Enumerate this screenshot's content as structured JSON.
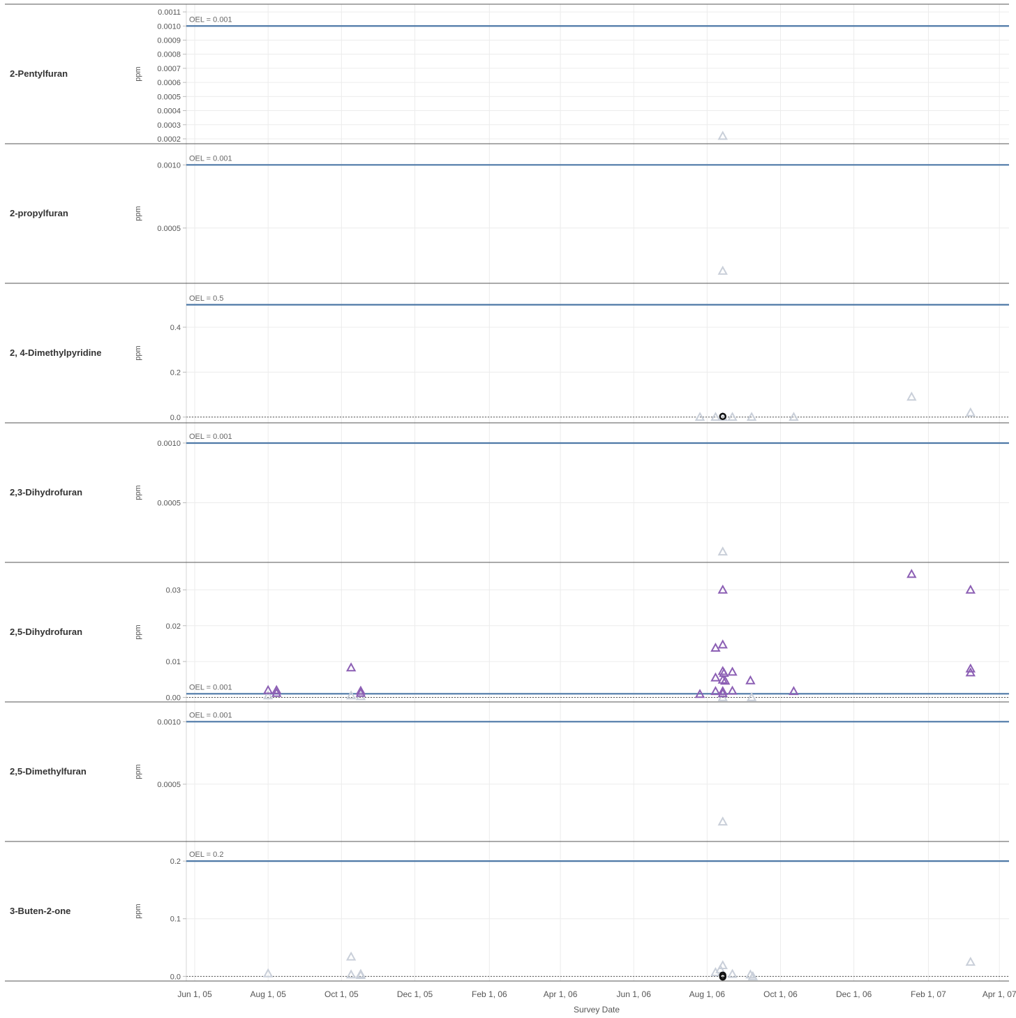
{
  "chart_data": {
    "type": "scatter",
    "x_axis": {
      "title": "Survey Date",
      "range": [
        "2005-05-25",
        "2007-04-09"
      ],
      "ticks": [
        {
          "date": "2005-06-01",
          "label": "Jun 1, 05"
        },
        {
          "date": "2005-08-01",
          "label": "Aug 1, 05"
        },
        {
          "date": "2005-10-01",
          "label": "Oct 1, 05"
        },
        {
          "date": "2005-12-01",
          "label": "Dec 1, 05"
        },
        {
          "date": "2006-02-01",
          "label": "Feb 1, 06"
        },
        {
          "date": "2006-04-01",
          "label": "Apr 1, 06"
        },
        {
          "date": "2006-06-01",
          "label": "Jun 1, 06"
        },
        {
          "date": "2006-08-01",
          "label": "Aug 1, 06"
        },
        {
          "date": "2006-10-01",
          "label": "Oct 1, 06"
        },
        {
          "date": "2006-12-01",
          "label": "Dec 1, 06"
        },
        {
          "date": "2007-02-01",
          "label": "Feb 1, 07"
        },
        {
          "date": "2007-04-01",
          "label": "Apr 1, 07"
        }
      ]
    },
    "colors": {
      "oel_line": "#4e79a7",
      "below_oel": "#c9cfd9",
      "above_oel": "#8c5fb4",
      "special": "#111111",
      "grid": "#ececec",
      "zero_line": "#555555"
    },
    "panels": [
      {
        "name": "2-Pentylfuran",
        "ylabel": "ppm",
        "oel": 0.001,
        "oel_label": "OEL = 0.001",
        "ylim": [
          0.00019,
          0.00113
        ],
        "zero_line": false,
        "ticks": [
          {
            "v": 0.0011,
            "label": "0.0011"
          },
          {
            "v": 0.001,
            "label": "0.0010"
          },
          {
            "v": 0.0009,
            "label": "0.0009"
          },
          {
            "v": 0.0008,
            "label": "0.0008"
          },
          {
            "v": 0.0007,
            "label": "0.0007"
          },
          {
            "v": 0.0006,
            "label": "0.0006"
          },
          {
            "v": 0.0005,
            "label": "0.0005"
          },
          {
            "v": 0.0004,
            "label": "0.0004"
          },
          {
            "v": 0.0003,
            "label": "0.0003"
          },
          {
            "v": 0.0002,
            "label": "0.0002"
          }
        ],
        "points": [
          {
            "x": "2006-08-14",
            "y": 0.00022,
            "kind": "below"
          }
        ]
      },
      {
        "name": "2-propylfuran",
        "ylabel": "ppm",
        "oel": 0.001,
        "oel_label": "OEL = 0.001",
        "ylim": [
          9e-05,
          0.00114
        ],
        "zero_line": false,
        "ticks": [
          {
            "v": 0.001,
            "label": "0.0010"
          },
          {
            "v": 0.0005,
            "label": "0.0005"
          }
        ],
        "points": [
          {
            "x": "2006-08-14",
            "y": 0.00016,
            "kind": "below"
          }
        ]
      },
      {
        "name": "2, 4-Dimethylpyridine",
        "ylabel": "ppm",
        "oel": 0.5,
        "oel_label": "OEL = 0.5",
        "ylim": [
          -0.01,
          0.58
        ],
        "zero_line": true,
        "ticks": [
          {
            "v": 0.4,
            "label": "0.4"
          },
          {
            "v": 0.2,
            "label": "0.2"
          },
          {
            "v": 0.0,
            "label": "0.0"
          }
        ],
        "points": [
          {
            "x": "2006-07-26",
            "y": 0.0,
            "kind": "below"
          },
          {
            "x": "2006-08-08",
            "y": 0.0,
            "kind": "below"
          },
          {
            "x": "2006-08-14",
            "y": 0.0,
            "kind": "below"
          },
          {
            "x": "2006-08-22",
            "y": 0.0,
            "kind": "below"
          },
          {
            "x": "2006-09-07",
            "y": 0.0,
            "kind": "below"
          },
          {
            "x": "2006-10-12",
            "y": 0.0,
            "kind": "below"
          },
          {
            "x": "2007-01-18",
            "y": 0.09,
            "kind": "below"
          },
          {
            "x": "2007-03-08",
            "y": 0.02,
            "kind": "below"
          },
          {
            "x": "2006-08-14",
            "y": 0.003,
            "kind": "special"
          }
        ]
      },
      {
        "name": "2,3-Dihydrofuran",
        "ylabel": "ppm",
        "oel": 0.001,
        "oel_label": "OEL = 0.001",
        "ylim": [
          3e-05,
          0.00114
        ],
        "zero_line": false,
        "ticks": [
          {
            "v": 0.001,
            "label": "0.0010"
          },
          {
            "v": 0.0005,
            "label": "0.0005"
          }
        ],
        "points": [
          {
            "x": "2006-08-14",
            "y": 9e-05,
            "kind": "below"
          }
        ]
      },
      {
        "name": "2,5-Dihydrofuran",
        "ylabel": "ppm",
        "oel": 0.001,
        "oel_label": "OEL = 0.001",
        "ylim": [
          -0.0003,
          0.0367
        ],
        "zero_line": true,
        "ticks": [
          {
            "v": 0.03,
            "label": "0.03"
          },
          {
            "v": 0.02,
            "label": "0.02"
          },
          {
            "v": 0.01,
            "label": "0.01"
          },
          {
            "v": 0.0,
            "label": "0.00"
          }
        ],
        "points": [
          {
            "x": "2005-08-01",
            "y": 0.0005,
            "kind": "below"
          },
          {
            "x": "2005-10-09",
            "y": 0.0005,
            "kind": "below"
          },
          {
            "x": "2005-10-17",
            "y": 0.0003,
            "kind": "below"
          },
          {
            "x": "2006-08-14",
            "y": 0.0,
            "kind": "below"
          },
          {
            "x": "2006-09-07",
            "y": 0.0,
            "kind": "below"
          },
          {
            "x": "2005-08-01",
            "y": 0.002,
            "kind": "above"
          },
          {
            "x": "2005-08-08",
            "y": 0.002,
            "kind": "above"
          },
          {
            "x": "2005-08-08",
            "y": 0.0012,
            "kind": "above"
          },
          {
            "x": "2005-10-09",
            "y": 0.0083,
            "kind": "above"
          },
          {
            "x": "2005-10-17",
            "y": 0.0018,
            "kind": "above"
          },
          {
            "x": "2005-10-17",
            "y": 0.0012,
            "kind": "above"
          },
          {
            "x": "2006-07-26",
            "y": 0.0009,
            "kind": "above"
          },
          {
            "x": "2006-08-08",
            "y": 0.0055,
            "kind": "above"
          },
          {
            "x": "2006-08-08",
            "y": 0.0017,
            "kind": "above"
          },
          {
            "x": "2006-08-08",
            "y": 0.0138,
            "kind": "above"
          },
          {
            "x": "2006-08-14",
            "y": 0.0147,
            "kind": "above"
          },
          {
            "x": "2006-08-14",
            "y": 0.03,
            "kind": "above"
          },
          {
            "x": "2006-08-14",
            "y": 0.0073,
            "kind": "above"
          },
          {
            "x": "2006-08-15",
            "y": 0.0068,
            "kind": "above"
          },
          {
            "x": "2006-08-14",
            "y": 0.0049,
            "kind": "above"
          },
          {
            "x": "2006-08-16",
            "y": 0.0046,
            "kind": "above"
          },
          {
            "x": "2006-08-14",
            "y": 0.0017,
            "kind": "above"
          },
          {
            "x": "2006-08-14",
            "y": 0.0011,
            "kind": "above"
          },
          {
            "x": "2006-08-22",
            "y": 0.0071,
            "kind": "above"
          },
          {
            "x": "2006-08-22",
            "y": 0.0018,
            "kind": "above"
          },
          {
            "x": "2006-09-06",
            "y": 0.0047,
            "kind": "above"
          },
          {
            "x": "2006-10-12",
            "y": 0.0017,
            "kind": "above"
          },
          {
            "x": "2007-01-18",
            "y": 0.0344,
            "kind": "above"
          },
          {
            "x": "2007-03-08",
            "y": 0.03,
            "kind": "above"
          },
          {
            "x": "2007-03-08",
            "y": 0.008,
            "kind": "above"
          },
          {
            "x": "2007-03-08",
            "y": 0.0069,
            "kind": "above"
          }
        ]
      },
      {
        "name": "2,5-Dimethylfuran",
        "ylabel": "ppm",
        "oel": 0.001,
        "oel_label": "OEL = 0.001",
        "ylim": [
          7e-05,
          0.00113
        ],
        "zero_line": false,
        "ticks": [
          {
            "v": 0.001,
            "label": "0.0010"
          },
          {
            "v": 0.0005,
            "label": "0.0005"
          }
        ],
        "points": [
          {
            "x": "2006-08-14",
            "y": 0.0002,
            "kind": "below"
          }
        ]
      },
      {
        "name": "3-Buten-2-one",
        "ylabel": "ppm",
        "oel": 0.2,
        "oel_label": "OEL = 0.2",
        "ylim": [
          -0.002,
          0.228
        ],
        "zero_line": true,
        "ticks": [
          {
            "v": 0.2,
            "label": "0.2"
          },
          {
            "v": 0.1,
            "label": "0.1"
          },
          {
            "v": 0.0,
            "label": "0.0"
          }
        ],
        "points": [
          {
            "x": "2005-08-01",
            "y": 0.005,
            "kind": "below"
          },
          {
            "x": "2005-10-09",
            "y": 0.034,
            "kind": "below"
          },
          {
            "x": "2005-10-09",
            "y": 0.003,
            "kind": "below"
          },
          {
            "x": "2005-10-17",
            "y": 0.004,
            "kind": "below"
          },
          {
            "x": "2005-10-17",
            "y": 0.002,
            "kind": "below"
          },
          {
            "x": "2006-08-08",
            "y": 0.007,
            "kind": "below"
          },
          {
            "x": "2006-08-12",
            "y": 0.012,
            "kind": "below"
          },
          {
            "x": "2006-08-14",
            "y": 0.019,
            "kind": "below"
          },
          {
            "x": "2006-08-22",
            "y": 0.004,
            "kind": "below"
          },
          {
            "x": "2006-09-06",
            "y": 0.003,
            "kind": "below"
          },
          {
            "x": "2006-09-08",
            "y": 0.0,
            "kind": "below"
          },
          {
            "x": "2007-03-08",
            "y": 0.025,
            "kind": "below"
          },
          {
            "x": "2006-08-14",
            "y": 0.002,
            "kind": "special"
          },
          {
            "x": "2006-08-14",
            "y": -0.001,
            "kind": "special"
          }
        ]
      }
    ]
  }
}
